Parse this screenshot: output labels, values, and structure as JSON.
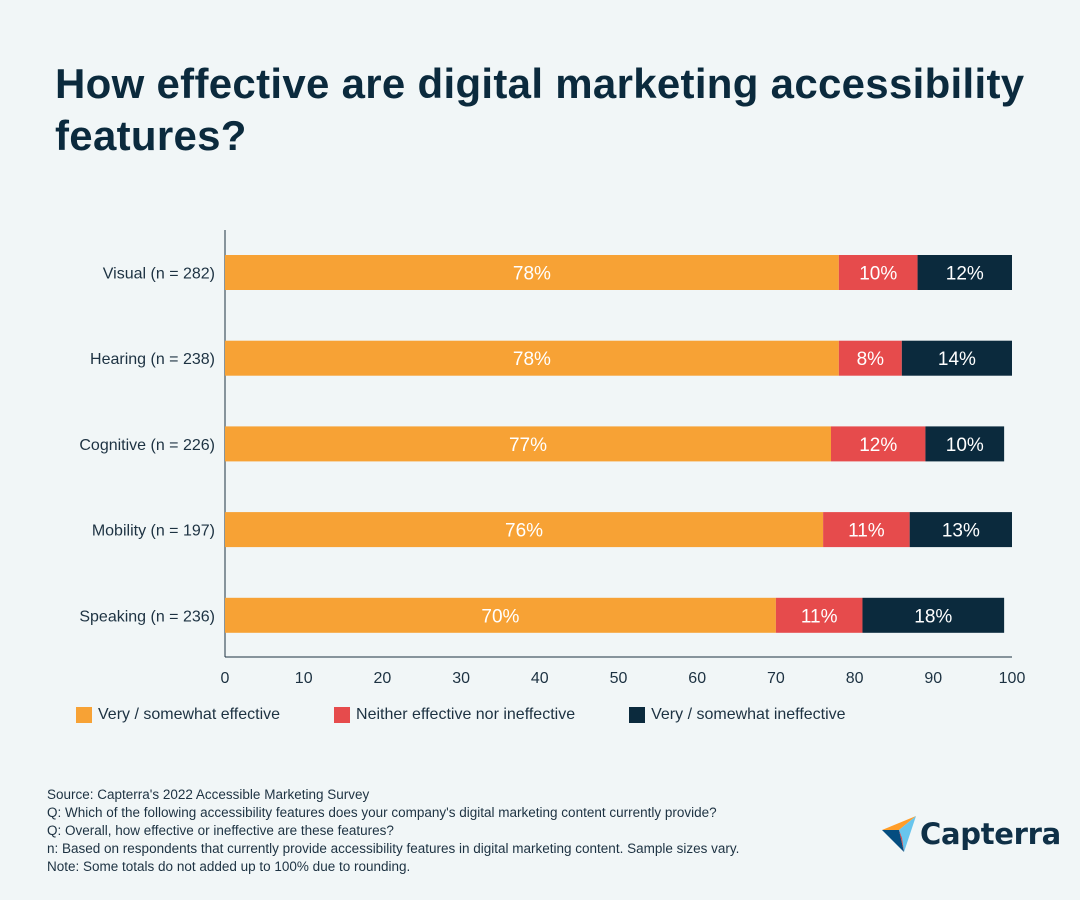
{
  "title": "How effective are digital marketing accessibility features?",
  "colors": {
    "effective": "#f7a235",
    "neither": "#e64b4c",
    "ineffective": "#0b2a3d",
    "axis": "#1d3242"
  },
  "chart_data": {
    "type": "bar",
    "orientation": "horizontal",
    "stacked": true,
    "categories": [
      "Visual (n = 282)",
      "Hearing (n = 238)",
      "Cognitive (n = 226)",
      "Mobility (n = 197)",
      "Speaking (n = 236)"
    ],
    "series": [
      {
        "name": "Very / somewhat effective",
        "values": [
          78,
          78,
          77,
          76,
          70
        ],
        "labels": [
          "78%",
          "78%",
          "77%",
          "76%",
          "70%"
        ],
        "color": "#f7a235"
      },
      {
        "name": "Neither effective nor ineffective",
        "values": [
          10,
          8,
          12,
          11,
          11
        ],
        "labels": [
          "10%",
          "8%",
          "12%",
          "11%",
          "11%"
        ],
        "color": "#e64b4c"
      },
      {
        "name": "Very / somewhat ineffective",
        "values": [
          12,
          14,
          10,
          13,
          18
        ],
        "labels": [
          "12%",
          "14%",
          "10%",
          "13%",
          "18%"
        ],
        "color": "#0b2a3d"
      }
    ],
    "xlim": [
      0,
      100
    ],
    "xticks": [
      "0",
      "10",
      "20",
      "30",
      "40",
      "50",
      "60",
      "70",
      "80",
      "90",
      "100"
    ],
    "grid": false,
    "legend_position": "bottom"
  },
  "footer": {
    "source": "Source: Capterra's 2022 Accessible Marketing Survey",
    "q1": "Q: Which of the following accessibility features does your company's digital marketing content currently provide?",
    "q2": "Q: Overall, how effective or ineffective are these features?",
    "n": "n: Based on respondents that currently provide accessibility features in digital marketing content. Sample sizes vary.",
    "note": "Note: Some totals do not added up to 100% due to rounding."
  },
  "logo": {
    "text": "Capterra",
    "icon": "capterra-arrow-icon"
  }
}
